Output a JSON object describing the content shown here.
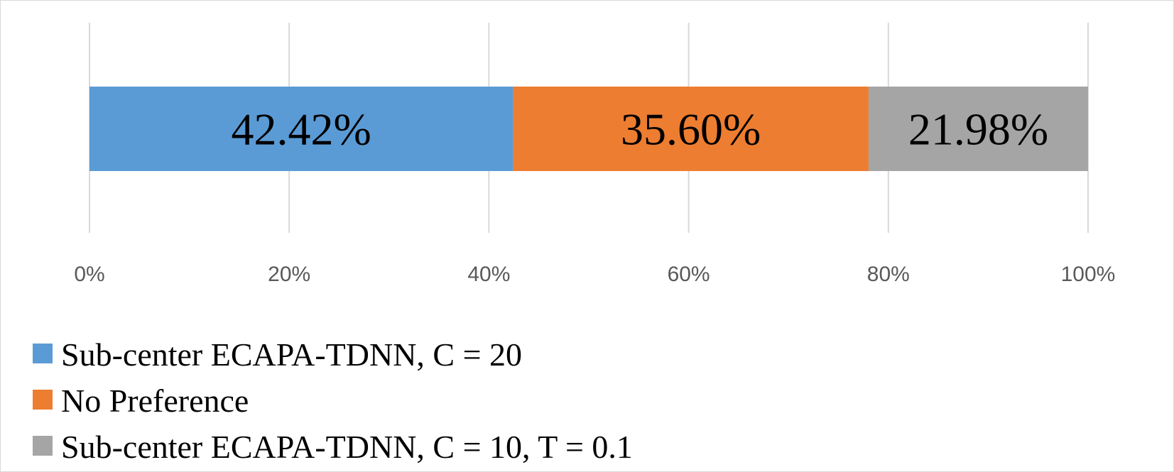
{
  "chart_data": {
    "type": "bar",
    "orientation": "horizontal",
    "stacked": true,
    "categories": [
      ""
    ],
    "series": [
      {
        "name": "Sub-center ECAPA-TDNN, C = 20",
        "values": [
          42.42
        ],
        "label": "42.42%",
        "color": "#5b9bd5"
      },
      {
        "name": "No Preference",
        "values": [
          35.6
        ],
        "label": "35.60%",
        "color": "#ed7d31"
      },
      {
        "name": "Sub-center ECAPA-TDNN, C = 10, T = 0.1",
        "values": [
          21.98
        ],
        "label": "21.98%",
        "color": "#a5a5a5"
      }
    ],
    "xlim": [
      0,
      100
    ],
    "x_ticks": [
      0,
      20,
      40,
      60,
      80,
      100
    ],
    "x_tick_labels": [
      "0%",
      "20%",
      "40%",
      "60%",
      "80%",
      "100%"
    ],
    "grid": true,
    "legend_position": "bottom-left",
    "title": "",
    "xlabel": "",
    "ylabel": ""
  }
}
